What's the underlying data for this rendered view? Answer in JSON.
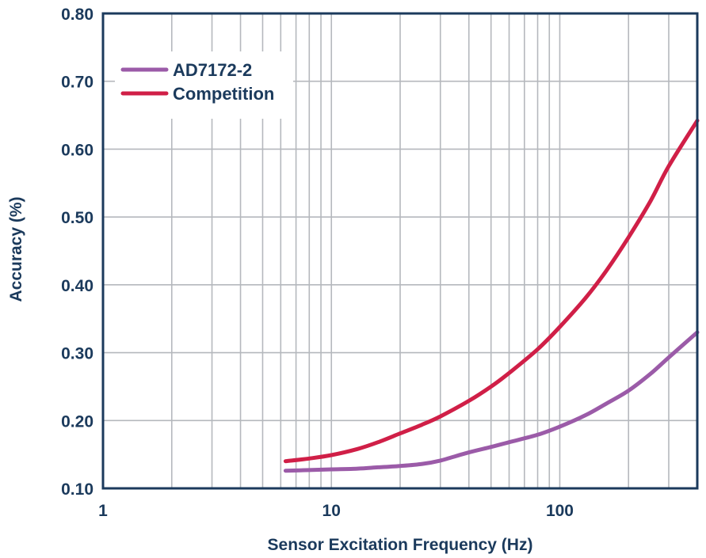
{
  "chart_data": {
    "type": "line",
    "title": "",
    "xlabel": "Sensor Excitation Frequency (Hz)",
    "ylabel": "Accuracy (%)",
    "xscale": "log",
    "xlim": [
      1,
      400
    ],
    "ylim": [
      0.1,
      0.8
    ],
    "x_ticks": [
      1,
      10,
      100
    ],
    "x_tick_labels": [
      "1",
      "10",
      "100"
    ],
    "y_ticks": [
      0.1,
      0.2,
      0.3,
      0.4,
      0.5,
      0.6,
      0.7,
      0.8
    ],
    "y_tick_labels": [
      "0.10",
      "0.20",
      "0.30",
      "0.40",
      "0.50",
      "0.60",
      "0.70",
      "0.80"
    ],
    "grid": true,
    "legend_position": "top-left",
    "series": [
      {
        "name": "AD7172-2",
        "color": "#9b5ba8",
        "x": [
          6.3,
          8,
          10,
          13,
          16,
          20,
          25,
          30,
          40,
          50,
          60,
          80,
          100,
          130,
          160,
          200,
          250,
          300,
          400
        ],
        "y": [
          0.126,
          0.127,
          0.128,
          0.129,
          0.131,
          0.133,
          0.136,
          0.141,
          0.153,
          0.161,
          0.168,
          0.179,
          0.191,
          0.208,
          0.225,
          0.244,
          0.269,
          0.293,
          0.33
        ]
      },
      {
        "name": "Competition",
        "color": "#d01f47",
        "x": [
          6.3,
          8,
          10,
          13,
          16,
          20,
          25,
          30,
          40,
          50,
          60,
          80,
          100,
          130,
          160,
          200,
          250,
          300,
          400
        ],
        "y": [
          0.14,
          0.144,
          0.149,
          0.158,
          0.168,
          0.181,
          0.194,
          0.206,
          0.229,
          0.25,
          0.27,
          0.305,
          0.338,
          0.381,
          0.421,
          0.47,
          0.524,
          0.575,
          0.642
        ]
      }
    ]
  },
  "colors": {
    "axis": "#1b3a5c",
    "grid": "#b5b8bd",
    "text": "#1b3a5c"
  }
}
